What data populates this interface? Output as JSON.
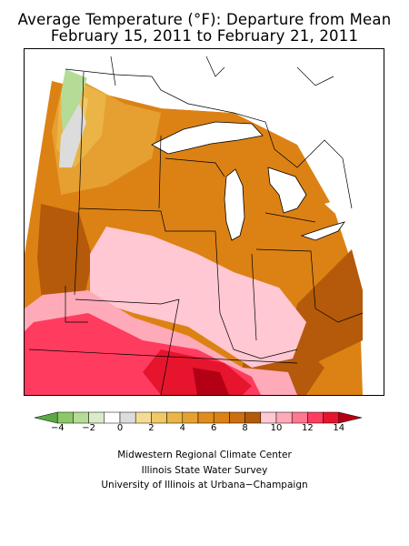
{
  "title": {
    "line1": "Average Temperature (°F): Departure from Mean",
    "line2": "February 15, 2011 to February 21, 2011"
  },
  "legend": {
    "tick_labels": [
      "−4",
      "−2",
      "0",
      "2",
      "4",
      "6",
      "8",
      "10",
      "12",
      "14"
    ],
    "bins": [
      {
        "from": -5,
        "to": -4,
        "color": "#5aa845"
      },
      {
        "from": -4,
        "to": -3,
        "color": "#8cc86a"
      },
      {
        "from": -3,
        "to": -2,
        "color": "#b5dc96"
      },
      {
        "from": -2,
        "to": -1,
        "color": "#d9ebc8"
      },
      {
        "from": -1,
        "to": 0,
        "color": "#ffffff"
      },
      {
        "from": 0,
        "to": 1,
        "color": "#dcdcdc"
      },
      {
        "from": 1,
        "to": 2,
        "color": "#f5dc96"
      },
      {
        "from": 2,
        "to": 3,
        "color": "#f0c864"
      },
      {
        "from": 3,
        "to": 4,
        "color": "#ebb446"
      },
      {
        "from": 4,
        "to": 5,
        "color": "#e6a032"
      },
      {
        "from": 5,
        "to": 6,
        "color": "#e08c1e"
      },
      {
        "from": 6,
        "to": 7,
        "color": "#dc8214"
      },
      {
        "from": 7,
        "to": 8,
        "color": "#cd6e0f"
      },
      {
        "from": 8,
        "to": 9,
        "color": "#b45a0a"
      },
      {
        "from": 9,
        "to": 10,
        "color": "#ffc8d2"
      },
      {
        "from": 10,
        "to": 11,
        "color": "#ffaab9"
      },
      {
        "from": 11,
        "to": 12,
        "color": "#ff7891"
      },
      {
        "from": 12,
        "to": 13,
        "color": "#ff3c5f"
      },
      {
        "from": 13,
        "to": 14,
        "color": "#e6142d"
      },
      {
        "from": 14,
        "to": 15,
        "color": "#b40014"
      }
    ],
    "range": [
      -5,
      15
    ],
    "arrows": "both ends"
  },
  "credits": {
    "line1": "Midwestern Regional Climate Center",
    "line2": "Illinois State Water Survey",
    "line3": "University of Illinois at Urbana−Champaign"
  },
  "map": {
    "region": "Midwestern United States",
    "layers": [
      "temperature departure shading",
      "state boundaries",
      "Great Lakes",
      "Canadian border"
    ]
  }
}
